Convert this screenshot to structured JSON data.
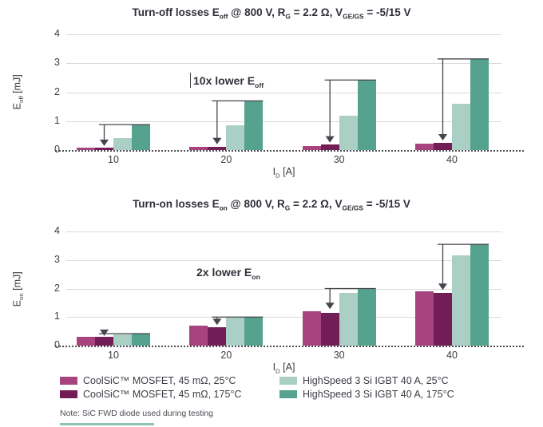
{
  "note": "Note: SiC FWD diode used during testing",
  "chart_data": [
    {
      "type": "bar",
      "title": "Turn-off losses Eoff @ 800 V, RG = 2.2 Ω, VGE/GS = -5/15 V",
      "title_parts": {
        "pre": "Turn-off losses E",
        "sub1": "off",
        "mid1": " @ 800 V, R",
        "sub2": "G",
        "mid2": " = 2.2 Ω, V",
        "sub3": "GE/GS",
        "post": " = -5/15 V"
      },
      "ylabel": "Eoff [mJ]",
      "ylabel_parts": {
        "pre": "E",
        "sub": "off",
        "post": " [mJ]"
      },
      "xlabel": "ID [A]",
      "xlabel_parts": {
        "pre": "I",
        "sub": "D",
        "post": " [A]"
      },
      "annotation": "10x lower Eoff",
      "annotation_parts": {
        "pre": "10x lower E",
        "sub": "off"
      },
      "categories": [
        10,
        20,
        30,
        40
      ],
      "ylim": [
        0,
        4
      ],
      "yticks": [
        0,
        1,
        2,
        3,
        4
      ],
      "grid": true,
      "series": [
        {
          "name": "CoolSiC™ MOSFET, 45 mΩ, 25°C",
          "color": "#a7437f",
          "values": [
            0.08,
            0.1,
            0.15,
            0.22
          ]
        },
        {
          "name": "CoolSiC™ MOSFET, 45 mΩ, 175°C",
          "color": "#721d55",
          "values": [
            0.08,
            0.12,
            0.18,
            0.25
          ]
        },
        {
          "name": "HighSpeed 3 Si IGBT 40 A, 25°C",
          "color": "#aacfc4",
          "values": [
            0.42,
            0.85,
            1.2,
            1.6
          ]
        },
        {
          "name": "HighSpeed 3 Si IGBT 40 A, 175°C",
          "color": "#55a28e",
          "values": [
            0.88,
            1.7,
            2.42,
            3.15
          ]
        }
      ],
      "arrows": [
        {
          "category": 10,
          "from": 0.88,
          "to": 0.14
        },
        {
          "category": 20,
          "from": 1.7,
          "to": 0.2
        },
        {
          "category": 30,
          "from": 2.42,
          "to": 0.26
        },
        {
          "category": 40,
          "from": 3.15,
          "to": 0.33
        }
      ]
    },
    {
      "type": "bar",
      "title": "Turn-on losses Eon @ 800 V, RG = 2.2 Ω, VGE/GS = -5/15 V",
      "title_parts": {
        "pre": "Turn-on losses E",
        "sub1": "on",
        "mid1": " @ 800 V, R",
        "sub2": "G",
        "mid2": " = 2.2 Ω, V",
        "sub3": "GE/GS",
        "post": " = -5/15 V"
      },
      "ylabel": "Eon [mJ]",
      "ylabel_parts": {
        "pre": "E",
        "sub": "on",
        "post": " [mJ]"
      },
      "xlabel": "ID [A]",
      "xlabel_parts": {
        "pre": "I",
        "sub": "D",
        "post": " [A]"
      },
      "annotation": "2x lower Eon",
      "annotation_parts": {
        "pre": "2x lower E",
        "sub": "on"
      },
      "categories": [
        10,
        20,
        30,
        40
      ],
      "ylim": [
        0,
        4
      ],
      "yticks": [
        0,
        1,
        2,
        3,
        4
      ],
      "grid": true,
      "series": [
        {
          "name": "CoolSiC™ MOSFET, 45 mΩ, 25°C",
          "color": "#a7437f",
          "values": [
            0.3,
            0.7,
            1.2,
            1.9
          ]
        },
        {
          "name": "CoolSiC™ MOSFET, 45 mΩ, 175°C",
          "color": "#721d55",
          "values": [
            0.3,
            0.65,
            1.15,
            1.85
          ]
        },
        {
          "name": "HighSpeed 3 Si IGBT 40 A, 25°C",
          "color": "#aacfc4",
          "values": [
            0.38,
            0.97,
            1.85,
            3.15
          ]
        },
        {
          "name": "HighSpeed 3 Si IGBT 40 A, 175°C",
          "color": "#55a28e",
          "values": [
            0.42,
            1.02,
            2.0,
            3.55
          ]
        }
      ],
      "arrows": [
        {
          "category": 10,
          "from": 0.42,
          "to": 0.34
        },
        {
          "category": 20,
          "from": 1.0,
          "to": 0.72
        },
        {
          "category": 30,
          "from": 2.0,
          "to": 1.28
        },
        {
          "category": 40,
          "from": 3.55,
          "to": 1.95
        }
      ]
    }
  ]
}
